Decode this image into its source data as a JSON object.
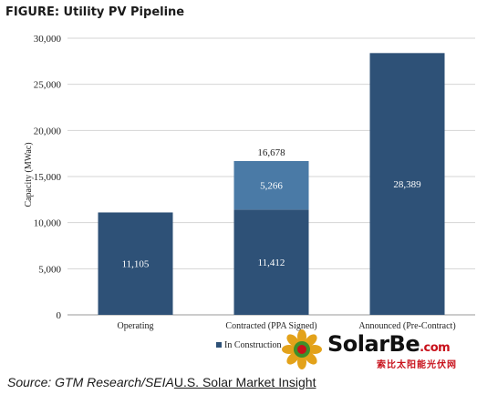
{
  "figure_title": "FIGURE: Utility PV Pipeline",
  "source": {
    "prefix": "Source: GTM Research/SEIA",
    "report": "U.S. Solar Market Insight"
  },
  "watermark": {
    "brand": "SolarBe",
    "domain": ".com",
    "subtitle": "索比太阳能光伏网"
  },
  "chart_data": {
    "type": "bar",
    "stacked": true,
    "title": "FIGURE: Utility PV Pipeline",
    "ylabel": "Capacity (MWac)",
    "xlabel": "",
    "ylim": [
      0,
      30000
    ],
    "yticks": [
      0,
      5000,
      10000,
      15000,
      20000,
      25000,
      30000
    ],
    "ytick_labels": [
      "0",
      "5,000",
      "10,000",
      "15,000",
      "20,000",
      "25,000",
      "30,000"
    ],
    "grid": true,
    "categories": [
      "Operating",
      "Contracted (PPA Signed)",
      "Announced (Pre-Contract)"
    ],
    "series": [
      {
        "name": "",
        "color": "#2e5177",
        "values": [
          11105,
          11412,
          28389
        ],
        "labels": [
          "11,105",
          "11,412",
          "28,389"
        ]
      },
      {
        "name": "",
        "color": "#4a7aa6",
        "values": [
          0,
          5266,
          0
        ],
        "labels": [
          "",
          "5,266",
          ""
        ]
      }
    ],
    "totals": [
      null,
      16678,
      null
    ],
    "total_labels": [
      "",
      "16,678",
      ""
    ],
    "legend": {
      "position": "bottom",
      "entries": [
        {
          "label": "In Construction",
          "color": "#2e5177"
        }
      ]
    }
  }
}
